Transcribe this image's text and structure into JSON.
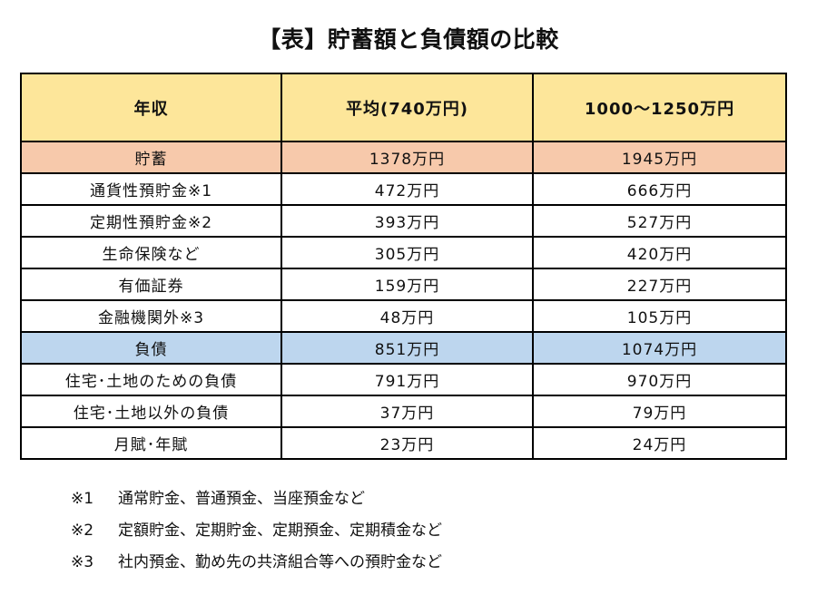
{
  "title": "【表】貯蓄額と負債額の比較",
  "table": {
    "headers": [
      "年収",
      "平均(740万円)",
      "1000～1250万円"
    ],
    "rows": [
      {
        "type": "savings",
        "cells": [
          "貯蓄",
          "1378万円",
          "1945万円"
        ]
      },
      {
        "type": "normal",
        "cells": [
          "通貨性預貯金※1",
          "472万円",
          "666万円"
        ]
      },
      {
        "type": "normal",
        "cells": [
          "定期性預貯金※2",
          "393万円",
          "527万円"
        ]
      },
      {
        "type": "normal",
        "cells": [
          "生命保険など",
          "305万円",
          "420万円"
        ]
      },
      {
        "type": "normal",
        "cells": [
          "有価証券",
          "159万円",
          "227万円"
        ]
      },
      {
        "type": "normal",
        "cells": [
          "金融機関外※3",
          "48万円",
          "105万円"
        ]
      },
      {
        "type": "debt",
        "cells": [
          "負債",
          "851万円",
          "1074万円"
        ]
      },
      {
        "type": "normal",
        "cells": [
          "住宅･土地のための負債",
          "791万円",
          "970万円"
        ]
      },
      {
        "type": "normal",
        "cells": [
          "住宅･土地以外の負債",
          "37万円",
          "79万円"
        ]
      },
      {
        "type": "normal",
        "cells": [
          "月賦･年賦",
          "23万円",
          "24万円"
        ]
      }
    ]
  },
  "notes": [
    {
      "mark": "※1",
      "text": "通常貯金、普通預金、当座預金など"
    },
    {
      "mark": "※2",
      "text": "定額貯金、定期貯金、定期預金、定期積金など"
    },
    {
      "mark": "※3",
      "text": "社内預金、勤め先の共済組合等への預貯金など"
    }
  ],
  "colors": {
    "header": "#fde69a",
    "savings": "#f7c9ab",
    "debt": "#bdd6ee"
  }
}
